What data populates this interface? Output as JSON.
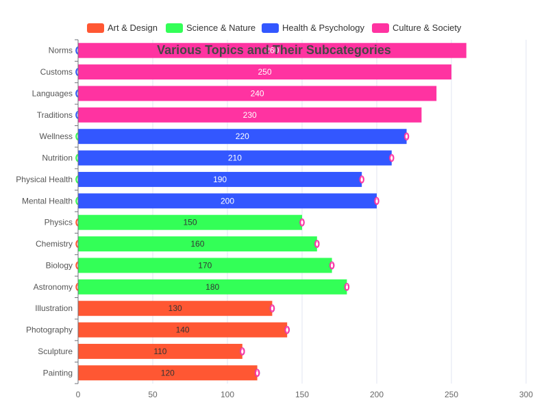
{
  "chart_data": {
    "type": "bar",
    "orientation": "horizontal",
    "stacked": true,
    "title": "Various Topics and Their Subcategories",
    "categories": [
      "Painting",
      "Sculpture",
      "Photography",
      "Illustration",
      "Astronomy",
      "Biology",
      "Chemistry",
      "Physics",
      "Mental Health",
      "Physical Health",
      "Nutrition",
      "Wellness",
      "Traditions",
      "Languages",
      "Customs",
      "Norms"
    ],
    "series": [
      {
        "name": "Art & Design",
        "color": "#ff5733",
        "label_color": "#333333",
        "values": [
          120,
          110,
          140,
          130,
          0,
          0,
          0,
          0,
          0,
          0,
          0,
          0,
          0,
          0,
          0,
          0
        ]
      },
      {
        "name": "Science & Nature",
        "color": "#33ff57",
        "label_color": "#333333",
        "values": [
          0,
          0,
          0,
          0,
          180,
          170,
          160,
          150,
          0,
          0,
          0,
          0,
          0,
          0,
          0,
          0
        ]
      },
      {
        "name": "Health & Psychology",
        "color": "#3357ff",
        "label_color": "#ffffff",
        "values": [
          0,
          0,
          0,
          0,
          0,
          0,
          0,
          0,
          200,
          190,
          210,
          220,
          0,
          0,
          0,
          0
        ]
      },
      {
        "name": "Culture & Society",
        "color": "#ff33a1",
        "label_color": "#ffffff",
        "values": [
          0,
          0,
          0,
          0,
          0,
          0,
          0,
          0,
          0,
          0,
          0,
          0,
          230,
          240,
          250,
          260
        ]
      }
    ],
    "xlim": [
      0,
      300
    ],
    "xticks": [
      0,
      50,
      100,
      150,
      200,
      250,
      300
    ],
    "grid": true,
    "legend_position": "top"
  }
}
